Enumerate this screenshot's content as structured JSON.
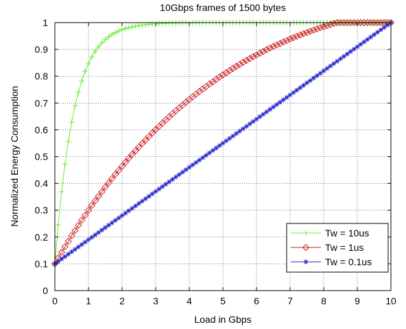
{
  "chart_data": {
    "type": "line",
    "title": "10Gbps frames of 1500 bytes",
    "xlabel": "Load in Gbps",
    "ylabel": "Normalized Energy Consumption",
    "xlim": [
      0,
      10
    ],
    "ylim": [
      0,
      1
    ],
    "xticks": [
      "0",
      "1",
      "2",
      "3",
      "4",
      "5",
      "6",
      "7",
      "8",
      "9",
      "10"
    ],
    "yticks": [
      "0",
      "0.1",
      "0.2",
      "0.3",
      "0.4",
      "0.5",
      "0.6",
      "0.7",
      "0.8",
      "0.9",
      "1"
    ],
    "grid": true,
    "legend_position": "bottom-right",
    "x": [
      0,
      0.1,
      0.2,
      0.3,
      0.4,
      0.5,
      0.6,
      0.7,
      0.8,
      0.9,
      1.0,
      1.1,
      1.2,
      1.3,
      1.4,
      1.5,
      1.6,
      1.7,
      1.8,
      1.9,
      2.0,
      2.1,
      2.2,
      2.3,
      2.4,
      2.5,
      2.6,
      2.7,
      2.8,
      2.9,
      3.0,
      3.1,
      3.2,
      3.3,
      3.4,
      3.5,
      3.6,
      3.7,
      3.8,
      3.9,
      4.0,
      4.1,
      4.2,
      4.3,
      4.4,
      4.5,
      4.6,
      4.7,
      4.8,
      4.9,
      5.0,
      5.1,
      5.2,
      5.3,
      5.4,
      5.5,
      5.6,
      5.7,
      5.8,
      5.9,
      6.0,
      6.1,
      6.2,
      6.3,
      6.4,
      6.5,
      6.6,
      6.7,
      6.8,
      6.9,
      7.0,
      7.1,
      7.2,
      7.3,
      7.4,
      7.5,
      7.6,
      7.7,
      7.8,
      7.9,
      8.0,
      8.1,
      8.2,
      8.3,
      8.4,
      8.5,
      8.6,
      8.7,
      8.8,
      8.9,
      9.0,
      9.1,
      9.2,
      9.3,
      9.4,
      9.5,
      9.6,
      9.7,
      9.8,
      9.9,
      10.0
    ],
    "series": [
      {
        "name": "Tw = 10us",
        "color": "#66ee33",
        "marker": "plus",
        "values": [
          0.1,
          0.246,
          0.369,
          0.471,
          0.557,
          0.629,
          0.69,
          0.74,
          0.782,
          0.818,
          0.847,
          0.872,
          0.893,
          0.91,
          0.925,
          0.937,
          0.947,
          0.956,
          0.963,
          0.969,
          0.974,
          0.978,
          0.981,
          0.984,
          0.987,
          0.989,
          0.991,
          0.992,
          0.993,
          0.995,
          0.995,
          0.996,
          0.997,
          0.997,
          0.998,
          0.998,
          0.998,
          0.999,
          0.999,
          0.999,
          0.999,
          0.999,
          0.999,
          1.0,
          1.0,
          1.0,
          1.0,
          1.0,
          1.0,
          1.0,
          1.0,
          1.0,
          1.0,
          1.0,
          1.0,
          1.0,
          1.0,
          1.0,
          1.0,
          1.0,
          1.0,
          1.0,
          1.0,
          1.0,
          1.0,
          1.0,
          1.0,
          1.0,
          1.0,
          1.0,
          1.0,
          1.0,
          1.0,
          1.0,
          1.0,
          1.0,
          1.0,
          1.0,
          1.0,
          1.0,
          1.0,
          1.0,
          1.0,
          1.0,
          1.0,
          1.0,
          1.0,
          1.0,
          1.0,
          1.0,
          1.0,
          1.0,
          1.0,
          1.0,
          1.0,
          1.0,
          1.0,
          1.0,
          1.0,
          1.0,
          1.0
        ]
      },
      {
        "name": "Tw = 1us",
        "color": "#cc2222",
        "marker": "diamond",
        "values": [
          0.1,
          0.122,
          0.143,
          0.164,
          0.184,
          0.205,
          0.224,
          0.244,
          0.263,
          0.281,
          0.3,
          0.318,
          0.335,
          0.352,
          0.369,
          0.386,
          0.402,
          0.418,
          0.434,
          0.449,
          0.464,
          0.479,
          0.494,
          0.508,
          0.522,
          0.536,
          0.549,
          0.562,
          0.575,
          0.588,
          0.601,
          0.613,
          0.625,
          0.637,
          0.648,
          0.66,
          0.671,
          0.682,
          0.692,
          0.703,
          0.713,
          0.723,
          0.733,
          0.743,
          0.752,
          0.761,
          0.771,
          0.779,
          0.788,
          0.797,
          0.805,
          0.813,
          0.821,
          0.829,
          0.837,
          0.844,
          0.852,
          0.859,
          0.866,
          0.873,
          0.879,
          0.886,
          0.892,
          0.899,
          0.905,
          0.911,
          0.917,
          0.922,
          0.928,
          0.933,
          0.939,
          0.944,
          0.949,
          0.954,
          0.959,
          0.963,
          0.968,
          0.972,
          0.977,
          0.981,
          0.985,
          0.989,
          0.993,
          0.997,
          1.0,
          1.0,
          1.0,
          1.0,
          1.0,
          1.0,
          1.0,
          1.0,
          1.0,
          1.0,
          1.0,
          1.0,
          1.0,
          1.0,
          1.0,
          1.0,
          1.0
        ]
      },
      {
        "name": "Tw = 0.1us",
        "color": "#2222cc",
        "marker": "star",
        "values": [
          0.1,
          0.109,
          0.118,
          0.127,
          0.136,
          0.145,
          0.154,
          0.163,
          0.172,
          0.181,
          0.19,
          0.199,
          0.208,
          0.217,
          0.226,
          0.235,
          0.244,
          0.253,
          0.262,
          0.271,
          0.28,
          0.289,
          0.298,
          0.307,
          0.316,
          0.325,
          0.334,
          0.343,
          0.352,
          0.361,
          0.37,
          0.379,
          0.388,
          0.397,
          0.406,
          0.415,
          0.424,
          0.433,
          0.442,
          0.451,
          0.46,
          0.469,
          0.478,
          0.487,
          0.496,
          0.505,
          0.514,
          0.523,
          0.532,
          0.541,
          0.55,
          0.559,
          0.568,
          0.577,
          0.586,
          0.595,
          0.604,
          0.613,
          0.622,
          0.631,
          0.64,
          0.649,
          0.658,
          0.667,
          0.676,
          0.685,
          0.694,
          0.703,
          0.712,
          0.721,
          0.73,
          0.739,
          0.748,
          0.757,
          0.766,
          0.775,
          0.784,
          0.793,
          0.802,
          0.811,
          0.82,
          0.829,
          0.838,
          0.847,
          0.856,
          0.865,
          0.874,
          0.883,
          0.892,
          0.901,
          0.91,
          0.919,
          0.928,
          0.937,
          0.946,
          0.955,
          0.964,
          0.973,
          0.982,
          0.991,
          1.0
        ]
      }
    ]
  }
}
